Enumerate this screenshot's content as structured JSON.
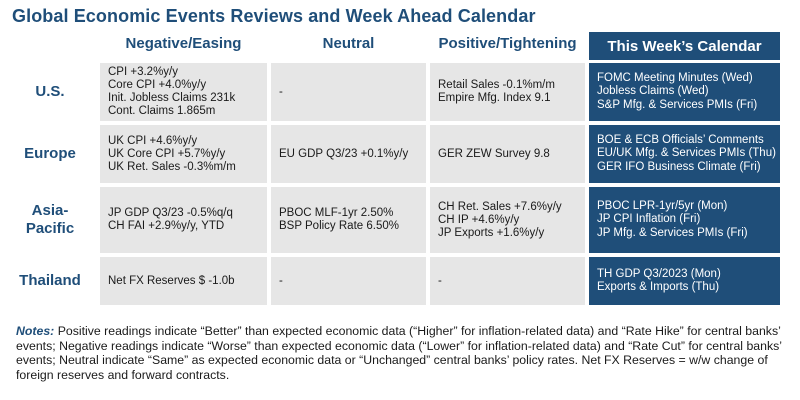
{
  "title": "Global Economic Events Reviews and Week Ahead Calendar",
  "columns": {
    "negative": "Negative/Easing",
    "neutral": "Neutral",
    "positive": "Positive/Tightening",
    "calendar": "This Week’s Calendar"
  },
  "rows": [
    {
      "label": "U.S.",
      "negative": [
        "CPI +3.2%y/y",
        "Core CPI +4.0%y/y",
        "Init. Jobless Claims 231k",
        "Cont. Claims 1.865m"
      ],
      "neutral": [
        "-"
      ],
      "positive": [
        "Retail Sales -0.1%m/m",
        "Empire Mfg. Index 9.1"
      ],
      "calendar": [
        "FOMC Meeting Minutes (Wed)",
        "Jobless Claims (Wed)",
        "S&P Mfg. & Services PMIs (Fri)"
      ]
    },
    {
      "label": "Europe",
      "negative": [
        "UK CPI +4.6%y/y",
        "UK Core CPI +5.7%y/y",
        "UK Ret. Sales -0.3%m/m"
      ],
      "neutral": [
        "EU GDP Q3/23 +0.1%y/y"
      ],
      "positive": [
        "GER ZEW Survey 9.8"
      ],
      "calendar": [
        "BOE & ECB Officials’ Comments",
        "EU/UK Mfg. & Services PMIs (Thu)",
        "GER IFO Business Climate (Fri)"
      ]
    },
    {
      "label": "Asia-Pacific",
      "label_lines": [
        "Asia-",
        "Pacific"
      ],
      "negative": [
        "JP GDP Q3/23 -0.5%q/q",
        "CH FAI +2.9%y/y, YTD"
      ],
      "neutral": [
        "PBOC MLF-1yr 2.50%",
        "BSP Policy Rate 6.50%"
      ],
      "positive": [
        "CH Ret. Sales +7.6%y/y",
        "CH IP +4.6%y/y",
        "JP Exports +1.6%y/y"
      ],
      "calendar": [
        "PBOC LPR-1yr/5yr (Mon)",
        "JP CPI Inflation (Fri)",
        "JP Mfg. & Services PMIs (Fri)"
      ]
    },
    {
      "label": "Thailand",
      "negative": [
        "Net FX Reserves $ -1.0b"
      ],
      "neutral": [
        "-"
      ],
      "positive": [
        "-"
      ],
      "calendar": [
        "TH GDP Q3/2023 (Mon)",
        "Exports & Imports (Thu)"
      ]
    }
  ],
  "notes": {
    "label": "Notes:",
    "text": "Positive readings indicate “Better” than expected economic data (“Higher” for inflation-related data) and “Rate Hike” for central banks’ events; Negative readings indicate “Worse” than expected economic data (“Lower” for inflation-related data) and “Rate Cut” for central banks’ events; Neutral indicate “Same” as expected economic data or “Unchanged” central banks’ policy rates. Net FX Reserves = w/w change of foreign reserves and forward contracts."
  },
  "colors": {
    "navy": "#1f4e79",
    "cell_gray": "#e6e6e6"
  }
}
